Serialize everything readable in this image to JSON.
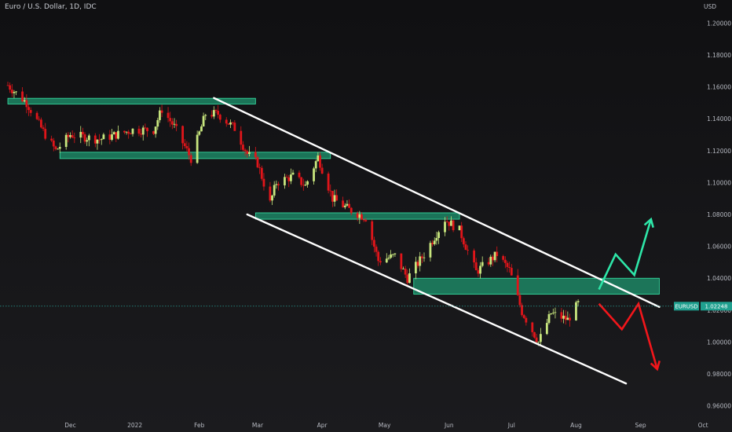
{
  "header": {
    "title": "Euro / U.S. Dollar, 1D, IDC",
    "currency": "USD"
  },
  "price_tag": {
    "symbol": "EURUSD",
    "value": "1.02248"
  },
  "colors": {
    "up": "#c8e67e",
    "down": "#e0151a",
    "zone_fill": "#1e8f6b",
    "zone_stroke": "#36e6a7",
    "channel": "#ffffff",
    "bull_arrow": "#2ee6a8",
    "bear_arrow": "#f2161b"
  },
  "chart_data": {
    "type": "candlestick",
    "ylim": [
      0.95,
      1.21
    ],
    "y_ticks": [
      "1.20000",
      "1.18000",
      "1.16000",
      "1.14000",
      "1.12000",
      "1.10000",
      "1.08000",
      "1.06000",
      "1.04000",
      "1.02000",
      "1.00000",
      "0.98000",
      "0.96000"
    ],
    "x_ticks": [
      "Dec",
      "2022",
      "Feb",
      "Mar",
      "Apr",
      "May",
      "Jun",
      "Jul",
      "Aug",
      "Sep",
      "Oct"
    ],
    "last_price": 1.02248,
    "zones": [
      {
        "from": "2021-11-01",
        "to": "2022-02-28",
        "low": 1.1492,
        "high": 1.1528
      },
      {
        "from": "2021-11-26",
        "to": "2022-04-05",
        "low": 1.115,
        "high": 1.119
      },
      {
        "from": "2022-02-28",
        "to": "2022-06-06",
        "low": 1.077,
        "high": 1.081
      },
      {
        "from": "2022-05-15",
        "to": "2022-09-10",
        "low": 1.03,
        "high": 1.04
      }
    ],
    "channel_lines": [
      {
        "from": [
          "2022-02-08",
          1.153
        ],
        "to": [
          "2022-09-10",
          1.022
        ]
      },
      {
        "from": [
          "2022-02-24",
          1.08
        ],
        "to": [
          "2022-08-25",
          0.974
        ]
      }
    ],
    "projections": [
      {
        "name": "bullish",
        "points": [
          [
            "2022-08-12",
            1.033
          ],
          [
            "2022-08-20",
            1.055
          ],
          [
            "2022-08-29",
            1.042
          ],
          [
            "2022-09-06",
            1.077
          ]
        ]
      },
      {
        "name": "bearish",
        "points": [
          [
            "2022-08-12",
            1.024
          ],
          [
            "2022-08-23",
            1.008
          ],
          [
            "2022-08-31",
            1.024
          ],
          [
            "2022-09-09",
            0.983
          ]
        ]
      }
    ]
  }
}
